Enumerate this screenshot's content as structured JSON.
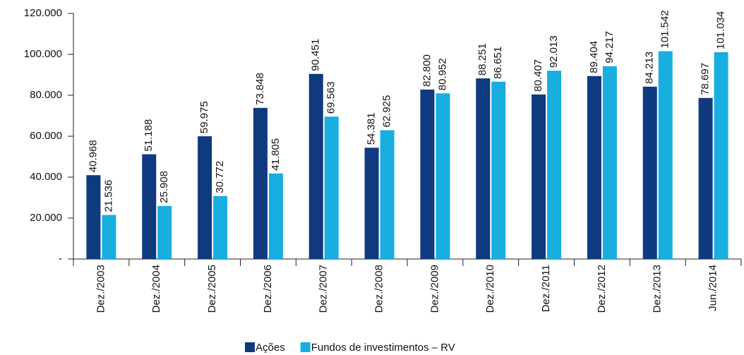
{
  "chart_data": {
    "type": "bar",
    "categories": [
      "Dez./2003",
      "Dez./2004",
      "Dez./2005",
      "Dez./2006",
      "Dez./2007",
      "Dez./2008",
      "Dez./2009",
      "Dez./2010",
      "Dez./2011",
      "Dez./2012",
      "Dez./2013",
      "Jun./2014"
    ],
    "series": [
      {
        "name": "Ações",
        "color": "#0f3a80",
        "values": [
          40968,
          51188,
          59975,
          73848,
          90451,
          54381,
          82800,
          88251,
          80407,
          89404,
          84213,
          78697
        ],
        "value_labels": [
          "40.968",
          "51.188",
          "59.975",
          "73.848",
          "90.451",
          "54.381",
          "82.800",
          "88.251",
          "80.407",
          "89.404",
          "84.213",
          "78.697"
        ]
      },
      {
        "name": "Fundos de investimentos – RV",
        "color": "#19aee0",
        "values": [
          21536,
          25908,
          30772,
          41805,
          69563,
          62925,
          80952,
          86651,
          92013,
          94217,
          101542,
          101034
        ],
        "value_labels": [
          "21.536",
          "25.908",
          "30.772",
          "41.805",
          "69.563",
          "62.925",
          "80.952",
          "86.651",
          "92.013",
          "94.217",
          "101.542",
          "101.034"
        ]
      }
    ],
    "ylim": [
      0,
      120000
    ],
    "yticks": [
      {
        "value": 0,
        "label": "-"
      },
      {
        "value": 20000,
        "label": "20.000"
      },
      {
        "value": 40000,
        "label": "40.000"
      },
      {
        "value": 60000,
        "label": "60.000"
      },
      {
        "value": 80000,
        "label": "80.000"
      },
      {
        "value": 100000,
        "label": "100.000"
      },
      {
        "value": 120000,
        "label": "120.000"
      }
    ],
    "grid": false,
    "legend": "bottom"
  }
}
